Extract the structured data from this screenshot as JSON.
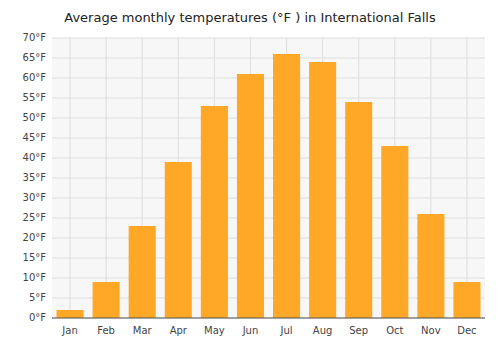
{
  "chart_data": {
    "type": "bar",
    "title": "Average monthly temperatures (°F ) in International Falls",
    "categories": [
      "Jan",
      "Feb",
      "Mar",
      "Apr",
      "May",
      "Jun",
      "Jul",
      "Aug",
      "Sep",
      "Oct",
      "Nov",
      "Dec"
    ],
    "values": [
      2,
      9,
      23,
      39,
      53,
      61,
      66,
      64,
      54,
      43,
      26,
      9
    ],
    "color": "#FFA726",
    "ylim": [
      0,
      70
    ],
    "yticks": [
      {
        "value": 0,
        "label": "0°F"
      },
      {
        "value": 5,
        "label": "5°F"
      },
      {
        "value": 10,
        "label": "10°F"
      },
      {
        "value": 15,
        "label": "15°F"
      },
      {
        "value": 20,
        "label": "20°F"
      },
      {
        "value": 25,
        "label": "25°F"
      },
      {
        "value": 30,
        "label": "30°F"
      },
      {
        "value": 35,
        "label": "35°F"
      },
      {
        "value": 40,
        "label": "40°F"
      },
      {
        "value": 45,
        "label": "45°F"
      },
      {
        "value": 50,
        "label": "50°F"
      },
      {
        "value": 55,
        "label": "55°F"
      },
      {
        "value": 60,
        "label": "60°F"
      },
      {
        "value": 65,
        "label": "65°F"
      },
      {
        "value": 70,
        "label": "70°F"
      }
    ],
    "grid": true
  }
}
